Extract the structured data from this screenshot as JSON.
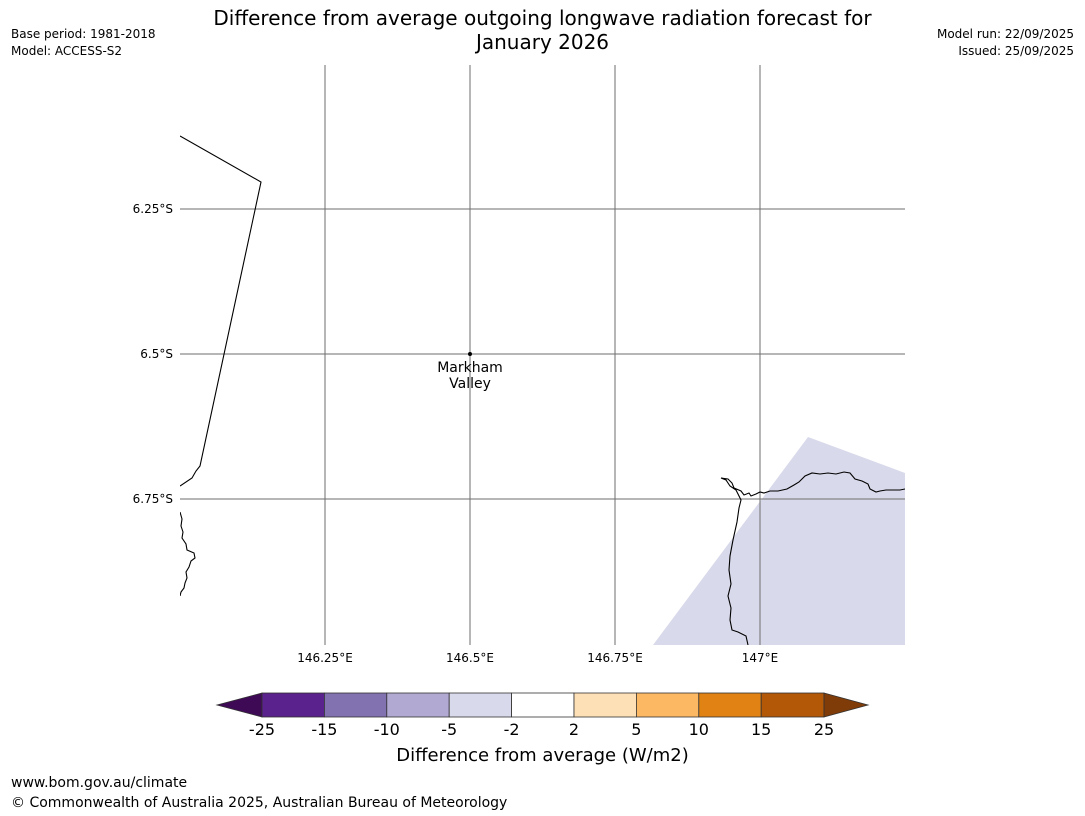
{
  "header": {
    "title_line1": "Difference from average outgoing longwave radiation forecast for",
    "title_line2": "January 2026",
    "base_period": "Base period: 1981-2018",
    "model": "Model: ACCESS-S2",
    "model_run": "Model run: 22/09/2025",
    "issued": "Issued: 25/09/2025"
  },
  "map": {
    "lat_labels": [
      "6.25°S",
      "6.5°S",
      "6.75°S"
    ],
    "lon_labels": [
      "146.25°E",
      "146.5°E",
      "146.75°E",
      "147°E"
    ],
    "place": {
      "name_line1": "Markham",
      "name_line2": "Valley",
      "lat": -6.5,
      "lon": 146.5
    },
    "forecast_region_category": "-5 to -2",
    "forecast_region_color": "#d8d9ea"
  },
  "colorbar": {
    "ticks": [
      "-25",
      "-15",
      "-10",
      "-5",
      "-2",
      "2",
      "5",
      "10",
      "15",
      "25"
    ],
    "colors": [
      "#3f0a55",
      "#5a228c",
      "#8372b0",
      "#b1a9d1",
      "#d8d9ea",
      "#ffffff",
      "#fee0b6",
      "#fdb863",
      "#e08214",
      "#b35806",
      "#7f3b08"
    ],
    "label": "Difference from average (W/m2)"
  },
  "footer": {
    "url": "www.bom.gov.au/climate",
    "copyright": "© Commonwealth of Australia 2025, Australian Bureau of Meteorology"
  }
}
